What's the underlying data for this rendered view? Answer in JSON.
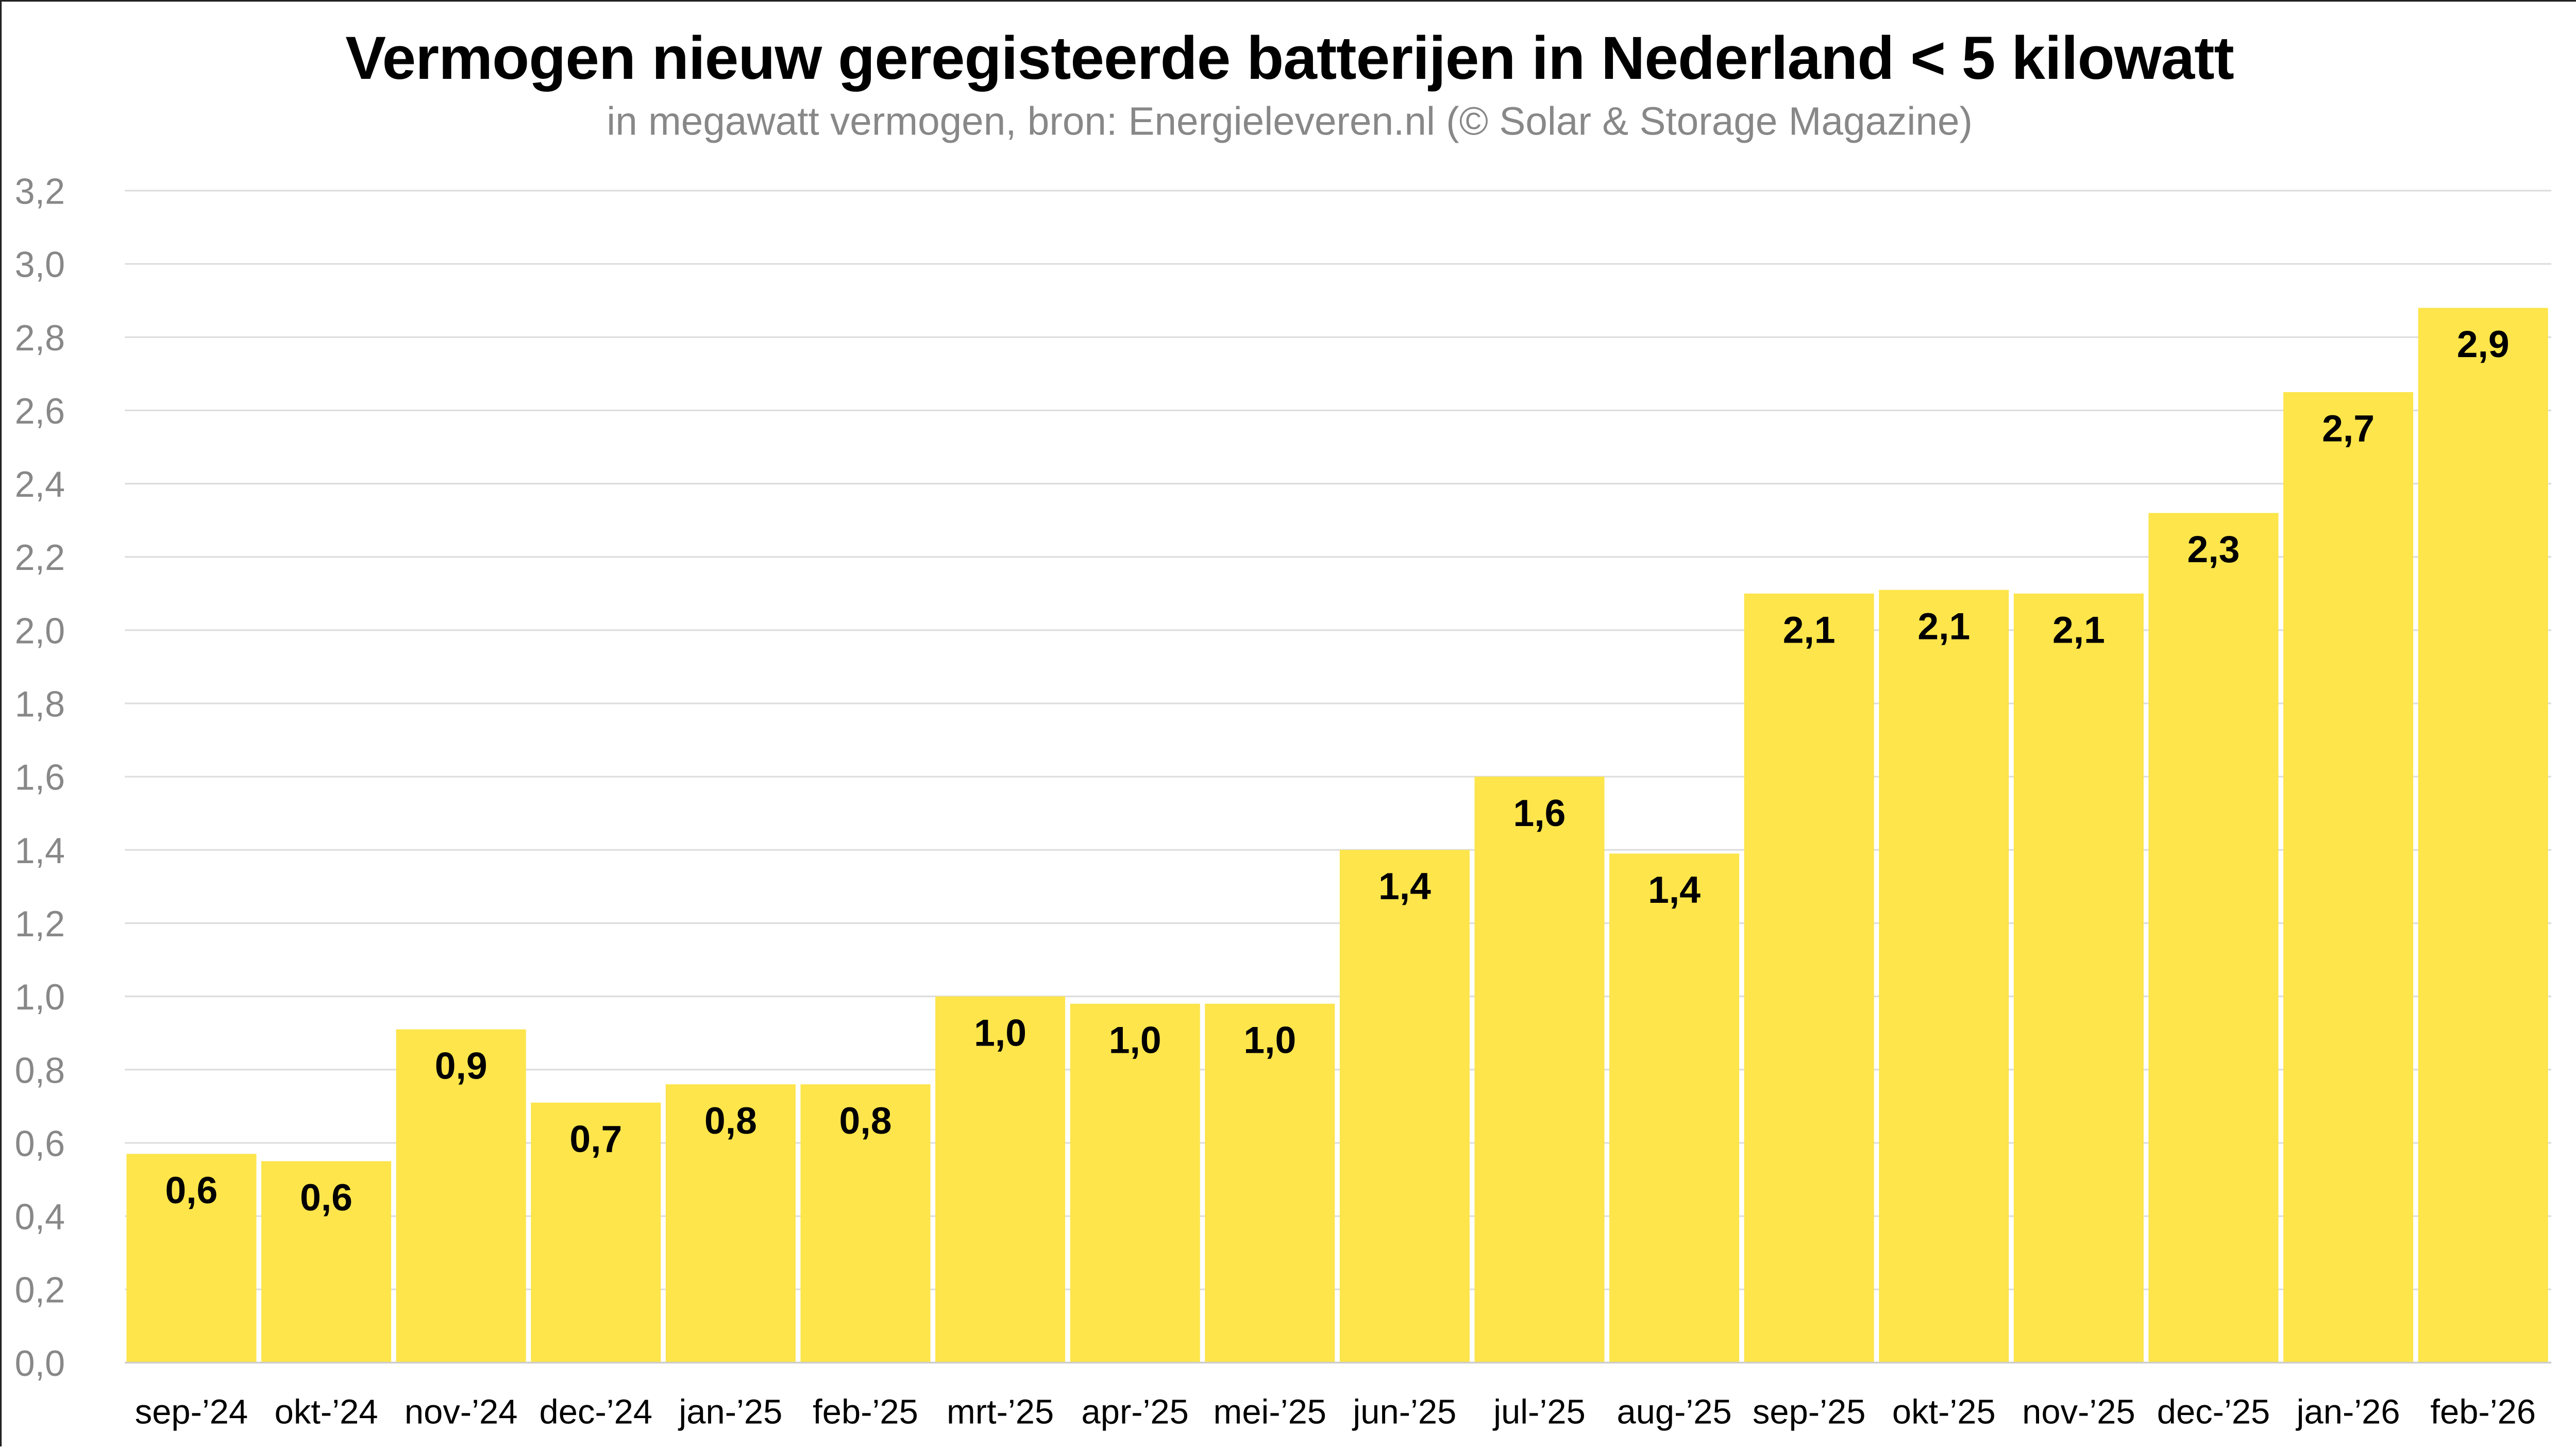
{
  "chart_data": {
    "type": "bar",
    "title": "Vermogen nieuw geregisteerde batterijen in Nederland < 5 kilowatt",
    "subtitle": "in megawatt vermogen, bron: Energieleveren.nl (© Solar & Storage Magazine)",
    "xlabel": "",
    "ylabel": "",
    "ylim": [
      0,
      3.2
    ],
    "grid": true,
    "y_ticks": [
      "0,0",
      "0,2",
      "0,4",
      "0,6",
      "0,8",
      "1,0",
      "1,2",
      "1,4",
      "1,6",
      "1,8",
      "2,0",
      "2,2",
      "2,4",
      "2,6",
      "2,8",
      "3,0",
      "3,2"
    ],
    "categories": [
      "sep-’24",
      "okt-’24",
      "nov-’24",
      "dec-’24",
      "jan-’25",
      "feb-’25",
      "mrt-’25",
      "apr-’25",
      "mei-’25",
      "jun-’25",
      "jul-’25",
      "aug-’25",
      "sep-’25",
      "okt-’25",
      "nov-’25",
      "dec-’25",
      "jan-’26",
      "feb-’26"
    ],
    "values": [
      0.57,
      0.55,
      0.91,
      0.71,
      0.76,
      0.76,
      1.0,
      0.98,
      0.98,
      1.4,
      1.6,
      1.39,
      2.1,
      2.11,
      2.1,
      2.32,
      2.65,
      2.88
    ],
    "labels": [
      "0,6",
      "0,6",
      "0,9",
      "0,7",
      "0,8",
      "0,8",
      "1,0",
      "1,0",
      "1,0",
      "1,4",
      "1,6",
      "1,4",
      "2,1",
      "2,1",
      "2,1",
      "2,3",
      "2,7",
      "2,9"
    ],
    "colors": {
      "bar": "#FDE54B",
      "grid": "#dddddd",
      "tick": "#888888"
    }
  }
}
